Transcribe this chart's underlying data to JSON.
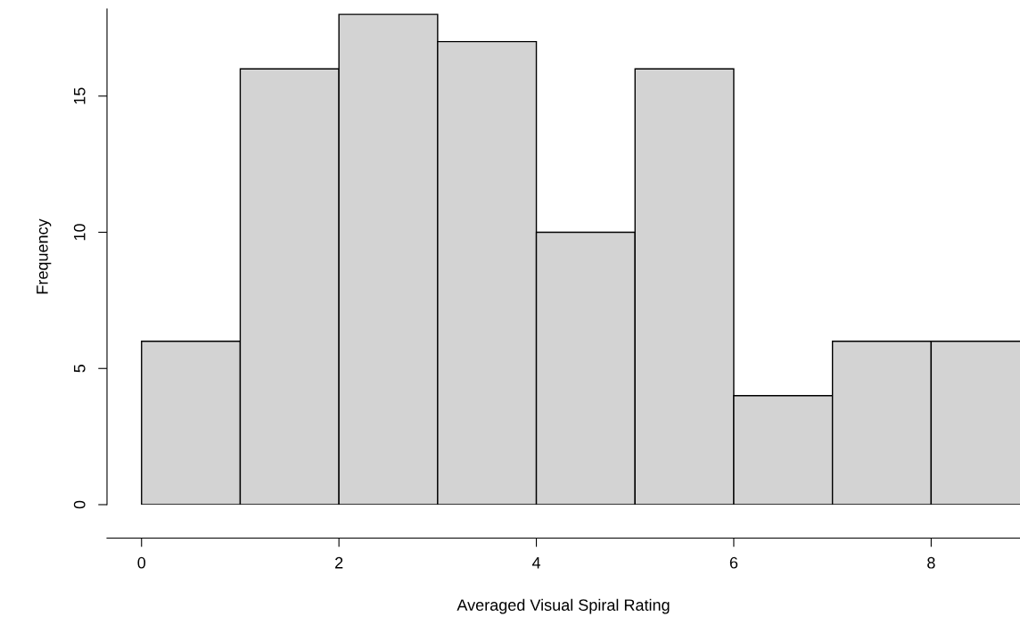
{
  "chart_data": {
    "type": "histogram",
    "xlabel": "Averaged Visual Spiral Rating",
    "ylabel": "Frequency",
    "bins": [
      0,
      1,
      2,
      3,
      4,
      5,
      6,
      7,
      8,
      9
    ],
    "values": [
      6,
      16,
      18,
      17,
      10,
      16,
      4,
      6,
      6
    ],
    "color": "#d3d3d3",
    "xlim": [
      -0.35,
      8.9
    ],
    "ylim": [
      0,
      18.2
    ],
    "xticks": [
      0,
      2,
      4,
      6,
      8
    ],
    "yticks": [
      0,
      5,
      10,
      15
    ],
    "grid": false,
    "legend": false
  }
}
